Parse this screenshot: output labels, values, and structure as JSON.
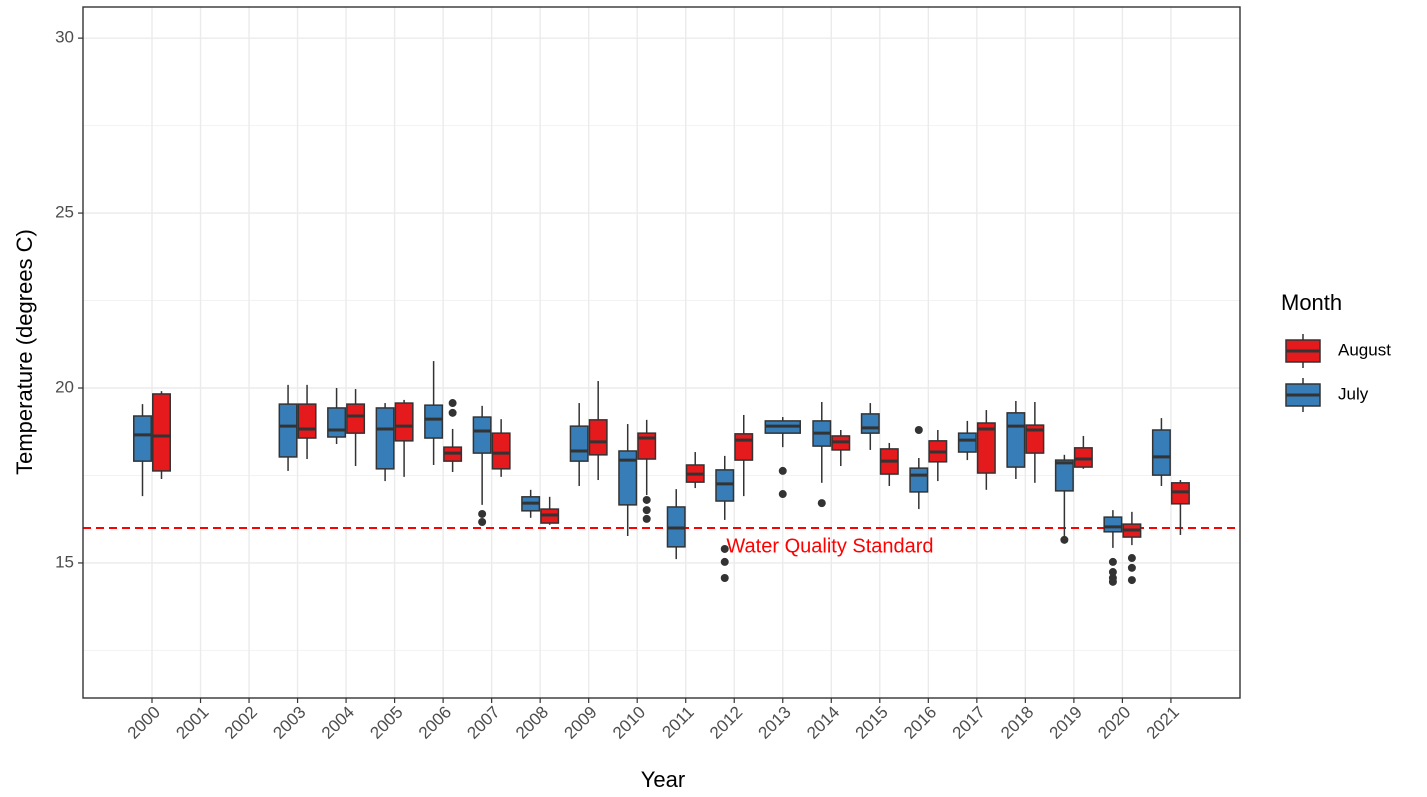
{
  "chart_data": {
    "type": "box",
    "x_label": "Year",
    "y_label": "Temperature (degrees C)",
    "legend_title": "Month",
    "legend_position": "right",
    "grid": true,
    "categories": [
      "2000",
      "2001",
      "2002",
      "2003",
      "2004",
      "2005",
      "2006",
      "2007",
      "2008",
      "2009",
      "2010",
      "2011",
      "2012",
      "2013",
      "2014",
      "2015",
      "2016",
      "2017",
      "2018",
      "2019",
      "2020",
      "2021"
    ],
    "ylim": [
      11.14,
      30.89
    ],
    "yticks": [
      15,
      20,
      25,
      30
    ],
    "minor_yticks": [
      12.5,
      17.5,
      22.5,
      27.5
    ],
    "hline": {
      "value": 16,
      "label": "Water Quality Standard",
      "color": "#ff0000"
    },
    "series": [
      {
        "name": "August",
        "color": "#e41a1c",
        "boxes": [
          {
            "low": 17.4,
            "q1": 17.63,
            "median": 18.63,
            "q3": 19.83,
            "high": 19.91,
            "outliers": []
          },
          null,
          null,
          {
            "low": 17.97,
            "q1": 18.57,
            "median": 18.83,
            "q3": 19.54,
            "high": 20.09,
            "outliers": []
          },
          {
            "low": 17.77,
            "q1": 18.71,
            "median": 19.2,
            "q3": 19.54,
            "high": 19.97,
            "outliers": []
          },
          {
            "low": 17.46,
            "q1": 18.49,
            "median": 18.91,
            "q3": 19.57,
            "high": 19.66,
            "outliers": []
          },
          {
            "low": 17.6,
            "q1": 17.91,
            "median": 18.14,
            "q3": 18.31,
            "high": 18.83,
            "outliers": [
              19.57,
              19.29
            ]
          },
          {
            "low": 17.46,
            "q1": 17.69,
            "median": 18.14,
            "q3": 18.71,
            "high": 19.11,
            "outliers": []
          },
          {
            "low": 16.09,
            "q1": 16.14,
            "median": 16.37,
            "q3": 16.54,
            "high": 16.89,
            "outliers": []
          },
          {
            "low": 17.37,
            "q1": 18.09,
            "median": 18.46,
            "q3": 19.09,
            "high": 20.2,
            "outliers": []
          },
          {
            "low": 16.94,
            "q1": 17.97,
            "median": 18.57,
            "q3": 18.71,
            "high": 19.09,
            "outliers": [
              16.8,
              16.51,
              16.26
            ]
          },
          {
            "low": 17.14,
            "q1": 17.31,
            "median": 17.54,
            "q3": 17.8,
            "high": 18.17,
            "outliers": []
          },
          {
            "low": 16.91,
            "q1": 17.94,
            "median": 18.51,
            "q3": 18.69,
            "high": 19.23,
            "outliers": []
          },
          null,
          {
            "low": 17.77,
            "q1": 18.23,
            "median": 18.46,
            "q3": 18.63,
            "high": 18.8,
            "outliers": []
          },
          {
            "low": 17.2,
            "q1": 17.54,
            "median": 17.91,
            "q3": 18.26,
            "high": 18.43,
            "outliers": []
          },
          {
            "low": 17.34,
            "q1": 17.89,
            "median": 18.17,
            "q3": 18.49,
            "high": 18.8,
            "outliers": []
          },
          {
            "low": 17.09,
            "q1": 17.57,
            "median": 18.83,
            "q3": 19.0,
            "high": 19.37,
            "outliers": []
          },
          {
            "low": 17.29,
            "q1": 18.14,
            "median": 18.8,
            "q3": 18.94,
            "high": 19.6,
            "outliers": []
          },
          {
            "low": 17.69,
            "q1": 17.74,
            "median": 17.97,
            "q3": 18.29,
            "high": 18.63,
            "outliers": []
          },
          {
            "low": 15.51,
            "q1": 15.74,
            "median": 15.94,
            "q3": 16.11,
            "high": 16.46,
            "outliers": [
              15.14,
              14.86,
              14.51
            ]
          },
          {
            "low": 15.8,
            "q1": 16.69,
            "median": 17.03,
            "q3": 17.29,
            "high": 17.37,
            "outliers": []
          }
        ]
      },
      {
        "name": "July",
        "color": "#377eb8",
        "boxes": [
          {
            "low": 16.91,
            "q1": 17.91,
            "median": 18.66,
            "q3": 19.2,
            "high": 19.54,
            "outliers": []
          },
          null,
          null,
          {
            "low": 17.63,
            "q1": 18.03,
            "median": 18.91,
            "q3": 19.54,
            "high": 20.09,
            "outliers": []
          },
          {
            "low": 18.4,
            "q1": 18.6,
            "median": 18.8,
            "q3": 19.43,
            "high": 20.0,
            "outliers": []
          },
          {
            "low": 17.34,
            "q1": 17.69,
            "median": 18.83,
            "q3": 19.43,
            "high": 19.57,
            "outliers": []
          },
          {
            "low": 17.8,
            "q1": 18.57,
            "median": 19.11,
            "q3": 19.51,
            "high": 20.77,
            "outliers": []
          },
          {
            "low": 16.66,
            "q1": 18.14,
            "median": 18.77,
            "q3": 19.17,
            "high": 19.49,
            "outliers": [
              16.4,
              16.17
            ]
          },
          {
            "low": 16.29,
            "q1": 16.49,
            "median": 16.71,
            "q3": 16.89,
            "high": 17.09,
            "outliers": []
          },
          {
            "low": 17.2,
            "q1": 17.91,
            "median": 18.2,
            "q3": 18.91,
            "high": 19.57,
            "outliers": []
          },
          {
            "low": 15.77,
            "q1": 16.66,
            "median": 17.94,
            "q3": 18.2,
            "high": 18.97,
            "outliers": []
          },
          {
            "low": 15.11,
            "q1": 15.46,
            "median": 16.0,
            "q3": 16.6,
            "high": 17.11,
            "outliers": []
          },
          {
            "low": 16.23,
            "q1": 16.77,
            "median": 17.26,
            "q3": 17.66,
            "high": 18.06,
            "outliers": [
              15.4,
              15.03,
              14.57
            ]
          },
          {
            "low": 18.31,
            "q1": 18.71,
            "median": 18.91,
            "q3": 19.06,
            "high": 19.17,
            "outliers": [
              17.63,
              16.97
            ]
          },
          {
            "low": 17.29,
            "q1": 18.34,
            "median": 18.71,
            "q3": 19.06,
            "high": 19.6,
            "outliers": [
              16.71
            ]
          },
          {
            "low": 18.23,
            "q1": 18.71,
            "median": 18.86,
            "q3": 19.26,
            "high": 19.57,
            "outliers": []
          },
          {
            "low": 16.54,
            "q1": 17.03,
            "median": 17.51,
            "q3": 17.71,
            "high": 18.0,
            "outliers": [
              18.8
            ]
          },
          {
            "low": 17.94,
            "q1": 18.17,
            "median": 18.51,
            "q3": 18.71,
            "high": 19.06,
            "outliers": []
          },
          {
            "low": 17.4,
            "q1": 17.74,
            "median": 18.91,
            "q3": 19.29,
            "high": 19.63,
            "outliers": []
          },
          {
            "low": 15.77,
            "q1": 17.06,
            "median": 17.86,
            "q3": 17.94,
            "high": 18.09,
            "outliers": [
              15.66
            ]
          },
          {
            "low": 15.43,
            "q1": 15.89,
            "median": 16.03,
            "q3": 16.31,
            "high": 16.51,
            "outliers": [
              15.03,
              14.74,
              14.57,
              14.46
            ]
          },
          {
            "low": 17.2,
            "q1": 17.51,
            "median": 18.03,
            "q3": 18.8,
            "high": 19.14,
            "outliers": []
          }
        ]
      }
    ]
  }
}
